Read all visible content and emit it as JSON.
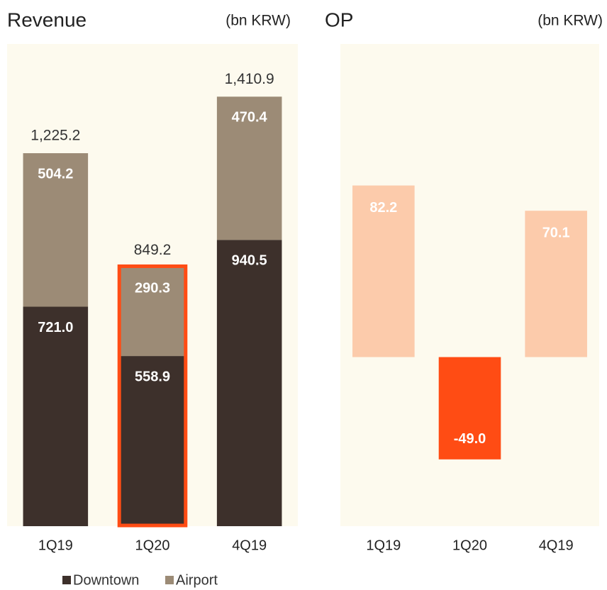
{
  "chart_data": [
    {
      "type": "stacked_bar",
      "title": "Revenue",
      "unit": "(bn KRW)",
      "categories": [
        "1Q19",
        "1Q20",
        "4Q19"
      ],
      "series": [
        {
          "name": "Downtown",
          "color": "#3d302b",
          "values": [
            721.0,
            558.9,
            940.5
          ],
          "value_labels": [
            "721.0",
            "558.9",
            "940.5"
          ]
        },
        {
          "name": "Airport",
          "color": "#9c8b76",
          "values": [
            504.2,
            290.3,
            470.4
          ],
          "value_labels": [
            "504.2",
            "290.3",
            "470.4"
          ]
        }
      ],
      "totals": [
        1225.2,
        849.2,
        1410.9
      ],
      "total_labels": [
        "1,225.2",
        "849.2",
        "1,410.9"
      ],
      "highlight": 1,
      "highlight_color": "#ff4c14",
      "ylim": [
        0,
        1584
      ],
      "background": "#fdfaee"
    },
    {
      "type": "bar",
      "title": "OP",
      "unit": "(bn KRW)",
      "categories": [
        "1Q19",
        "1Q20",
        "4Q19"
      ],
      "values": [
        82.2,
        -49.0,
        70.1
      ],
      "value_labels": [
        "82.2",
        "-49.0",
        "70.1"
      ],
      "colors": [
        "#fccbab",
        "#ff4c14",
        "#fccbab"
      ],
      "ylim": [
        -81,
        150
      ],
      "background": "#fdfaee"
    }
  ]
}
